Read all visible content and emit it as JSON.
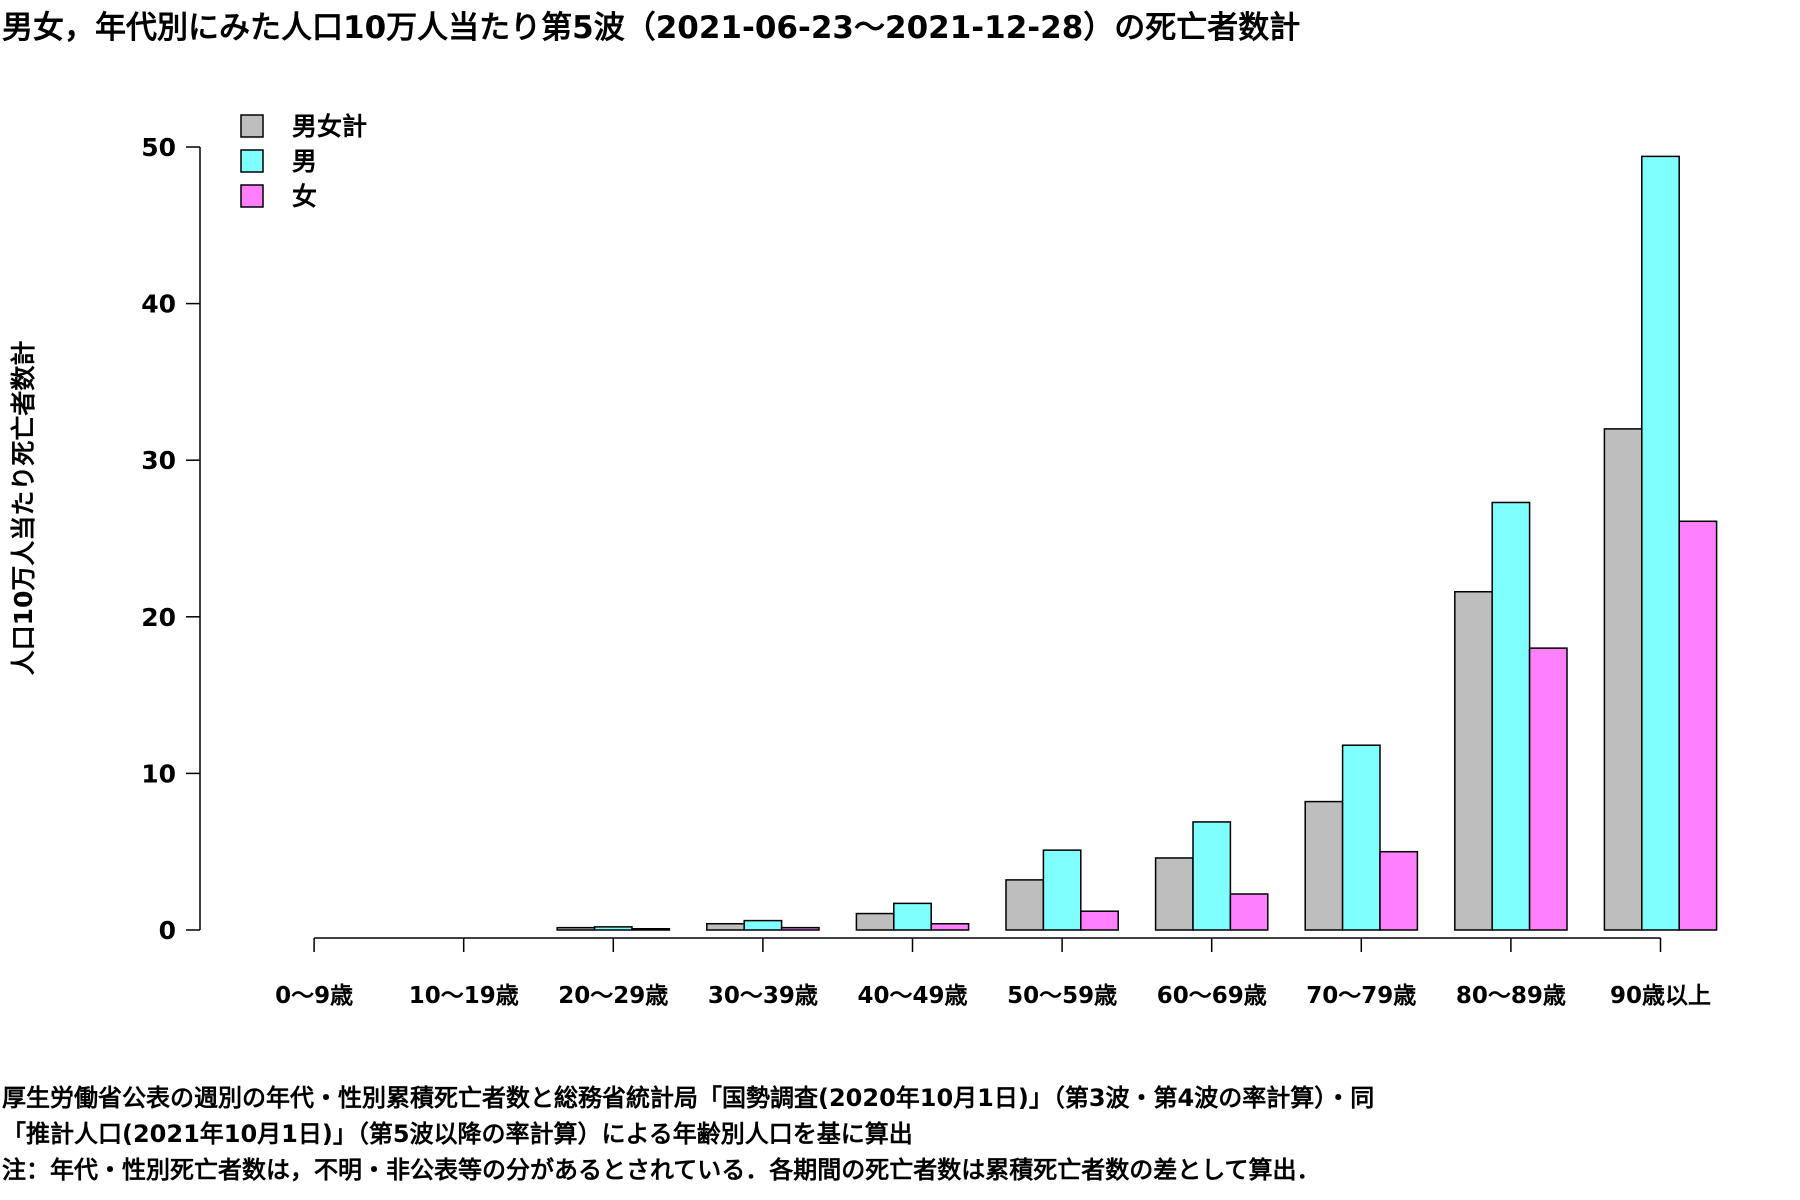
{
  "title": "男女，年代別にみた人口10万人当たり第5波（2021-06-23〜2021-12-28）の死亡者数計",
  "notes": [
    "厚生労働省公表の週別の年代・性別累積死亡者数と総務省統計局「国勢調査(2020年10月1日)」（第3波・第4波の率計算）・同",
    "「推計人口(2021年10月1日)」（第5波以降の率計算）による年齢別人口を基に算出",
    "注：年代・性別死亡者数は，不明・非公表等の分があるとされている．各期間の死亡者数は累積死亡者数の差として算出．"
  ],
  "chart_data": {
    "type": "bar",
    "title": "男女，年代別にみた人口10万人当たり第5波（2021-06-23〜2021-12-28）の死亡者数計",
    "xlabel": "",
    "ylabel": "人口10万人当たり死亡者数計",
    "ylim": [
      0,
      50
    ],
    "yticks": [
      0,
      10,
      20,
      30,
      40,
      50
    ],
    "grid": false,
    "legend_position": "top-left",
    "categories": [
      "0〜9歳",
      "10〜19歳",
      "20〜29歳",
      "30〜39歳",
      "40〜49歳",
      "50〜59歳",
      "60〜69歳",
      "70〜79歳",
      "80〜89歳",
      "90歳以上"
    ],
    "series": [
      {
        "name": "男女計",
        "color": "#bebebe",
        "values": [
          0.0,
          0.0,
          0.15,
          0.4,
          1.05,
          3.2,
          4.6,
          8.2,
          21.6,
          32.0
        ]
      },
      {
        "name": "男",
        "color": "#80ffff",
        "values": [
          0.0,
          0.0,
          0.2,
          0.6,
          1.7,
          5.1,
          6.9,
          11.8,
          27.3,
          49.4
        ]
      },
      {
        "name": "女",
        "color": "#ff80ff",
        "values": [
          0.0,
          0.0,
          0.08,
          0.15,
          0.4,
          1.2,
          2.3,
          5.0,
          18.0,
          26.1
        ]
      }
    ]
  }
}
